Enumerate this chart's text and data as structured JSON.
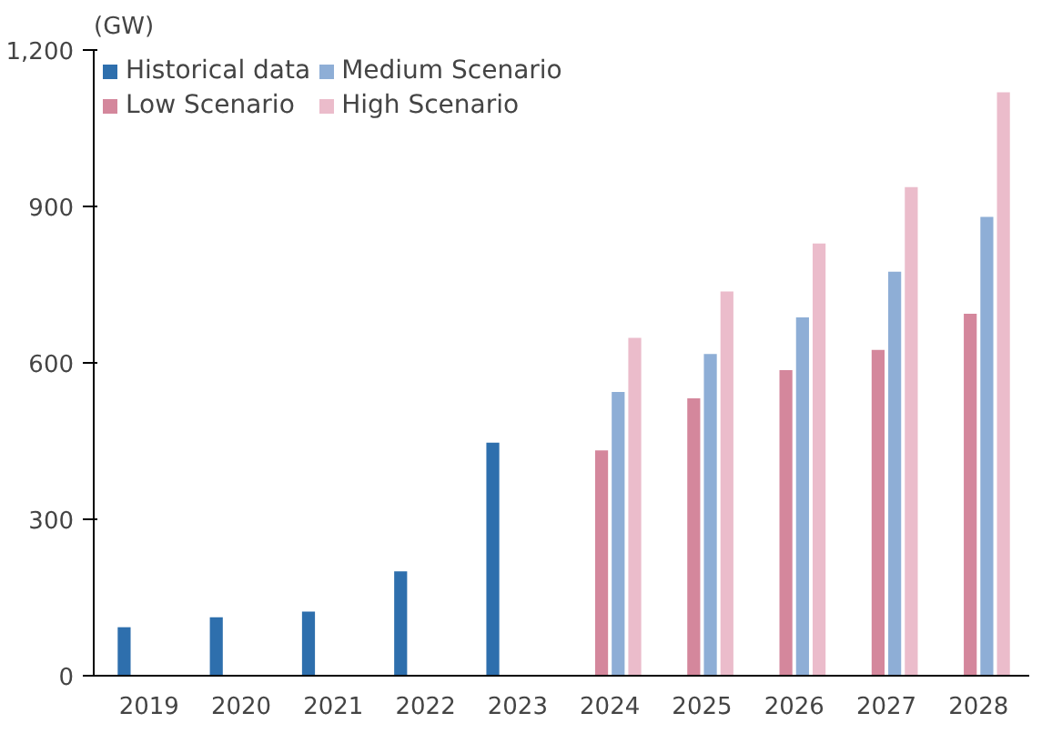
{
  "chart_data": {
    "type": "bar",
    "ylabel": "(GW)",
    "categories": [
      "2019",
      "2020",
      "2021",
      "2022",
      "2023",
      "2024",
      "2025",
      "2026",
      "2027",
      "2028"
    ],
    "series": [
      {
        "name": "Historical data",
        "color": "#2e6fad",
        "values": [
          93,
          112,
          123,
          200,
          447,
          null,
          null,
          null,
          null,
          null
        ]
      },
      {
        "name": "Low Scenario",
        "color": "#d4879c",
        "values": [
          null,
          null,
          null,
          null,
          null,
          432,
          532,
          586,
          625,
          694
        ]
      },
      {
        "name": "Medium Scenario",
        "color": "#8eaed6",
        "values": [
          null,
          null,
          null,
          null,
          null,
          544,
          617,
          687,
          775,
          880
        ]
      },
      {
        "name": "High Scenario",
        "color": "#ebbccb",
        "values": [
          null,
          null,
          null,
          null,
          null,
          648,
          737,
          829,
          937,
          1119
        ]
      }
    ],
    "ylim": [
      0,
      1200
    ],
    "yticks": [
      0,
      {
        "value": 300,
        "label": "300"
      },
      {
        "value": 600,
        "label": "600"
      },
      {
        "value": 900,
        "label": "900"
      },
      {
        "value": 1200,
        "label": "1,200"
      }
    ],
    "grid": false,
    "legend": "top left"
  }
}
